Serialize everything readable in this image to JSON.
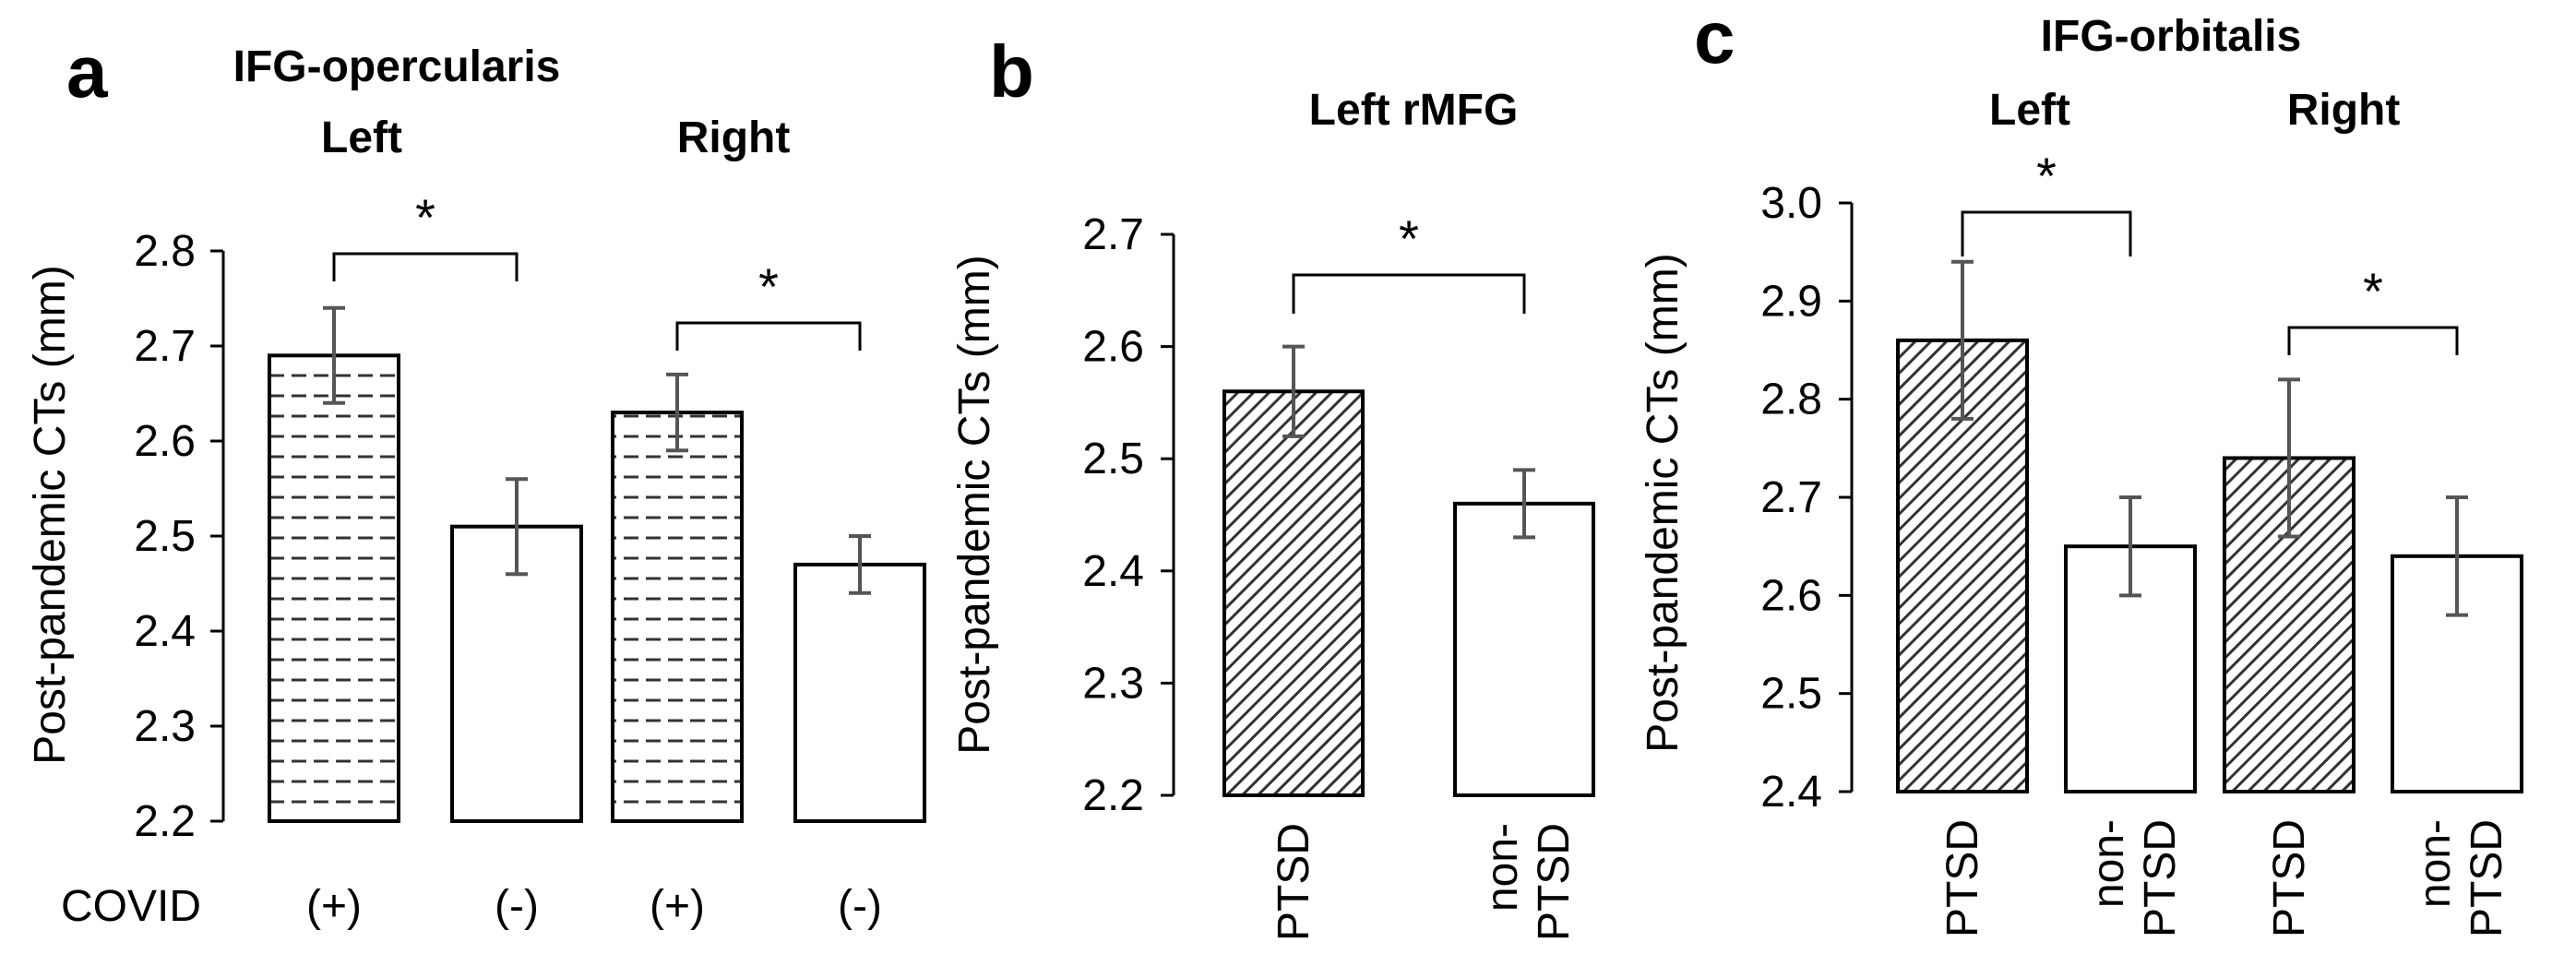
{
  "figure": {
    "colors": {
      "axis": "#000000",
      "error_bar": "#555555",
      "bar_fill": "#ffffff",
      "bar_edge": "#000000",
      "pattern": "#333333"
    }
  },
  "chart_data": [
    {
      "panel": "a",
      "type": "bar",
      "title": "IFG-opercularis",
      "group_labels": [
        "Left",
        "Right"
      ],
      "ylabel": "Post-pandemic CTs (mm)",
      "ylim": [
        2.2,
        2.8
      ],
      "yticks": [
        "2.2",
        "2.3",
        "2.4",
        "2.5",
        "2.6",
        "2.7",
        "2.8"
      ],
      "category_prefix": "COVID",
      "categories": [
        "(+)",
        "(-)",
        "(+)",
        "(-)"
      ],
      "values": [
        2.69,
        2.51,
        2.63,
        2.47
      ],
      "errors": [
        0.05,
        0.05,
        0.04,
        0.03
      ],
      "patterns": [
        "dashes",
        "none",
        "dashes",
        "none"
      ],
      "significance": [
        {
          "bars": [
            0,
            1
          ],
          "label": "*"
        },
        {
          "bars": [
            2,
            3
          ],
          "label": "*"
        }
      ]
    },
    {
      "panel": "b",
      "type": "bar",
      "title": "Left rMFG",
      "ylabel": "Post-pandemic CTs (mm)",
      "ylim": [
        2.2,
        2.7
      ],
      "yticks": [
        "2.2",
        "2.3",
        "2.4",
        "2.5",
        "2.6",
        "2.7"
      ],
      "categories": [
        [
          "PTSD"
        ],
        [
          "non-",
          "PTSD"
        ]
      ],
      "values": [
        2.56,
        2.46
      ],
      "errors": [
        0.04,
        0.03
      ],
      "patterns": [
        "hatch",
        "none"
      ],
      "significance": [
        {
          "bars": [
            0,
            1
          ],
          "label": "*"
        }
      ]
    },
    {
      "panel": "c",
      "type": "bar",
      "title": "IFG-orbitalis",
      "group_labels": [
        "Left",
        "Right"
      ],
      "ylabel": "Post-pandemic CTs (mm)",
      "ylim": [
        2.4,
        3.0
      ],
      "yticks": [
        "2.4",
        "2.5",
        "2.6",
        "2.7",
        "2.8",
        "2.9",
        "3.0"
      ],
      "categories": [
        [
          "PTSD"
        ],
        [
          "non-",
          "PTSD"
        ],
        [
          "PTSD"
        ],
        [
          "non-",
          "PTSD"
        ]
      ],
      "values": [
        2.86,
        2.65,
        2.74,
        2.64
      ],
      "errors": [
        0.08,
        0.05,
        0.08,
        0.06
      ],
      "patterns": [
        "hatch",
        "none",
        "hatch",
        "none"
      ],
      "significance": [
        {
          "bars": [
            0,
            1
          ],
          "label": "*"
        },
        {
          "bars": [
            2,
            3
          ],
          "label": "*"
        }
      ]
    }
  ]
}
